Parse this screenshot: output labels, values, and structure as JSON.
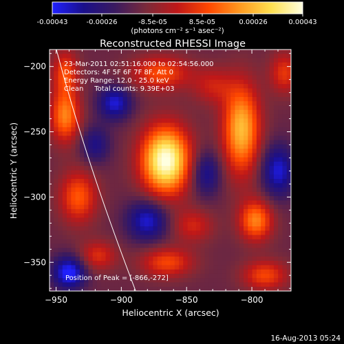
{
  "chart_data": {
    "type": "heatmap",
    "title": "Reconstructed RHESSI Image",
    "xlabel": "Heliocentric X (arcsec)",
    "ylabel": "Heliocentric Y (arcsec)",
    "xlim": [
      -955,
      -770
    ],
    "ylim": [
      -372,
      -187
    ],
    "x_ticks": [
      -950,
      -900,
      -850,
      -800
    ],
    "y_ticks": [
      -200,
      -250,
      -300,
      -350
    ],
    "colorbar": {
      "ticks": [
        "-0.00043",
        "-0.00026",
        "-8.5e-05",
        "8.5e-05",
        "0.00026",
        "0.00043"
      ],
      "tick_values": [
        -0.00043,
        -0.00026,
        -8.5e-05,
        8.5e-05,
        0.00026,
        0.00043
      ],
      "range": [
        -0.00043,
        0.00043
      ],
      "unit": "(photons cm⁻² s⁻¹ asec⁻²)",
      "colors": [
        "#2020ff",
        "#1a0f8a",
        "#3a1a60",
        "#7a2a3a",
        "#c01818",
        "#ff4800",
        "#ff9a20",
        "#ffe050",
        "#ffffe0"
      ]
    },
    "annotations": [
      "23-Mar-2011 02:51:16.000 to 02:54:56.000",
      "Detectors: 4F 5F 6F 7F 8F, Att 0",
      "Energy Range: 12.0 - 25.0 keV",
      "Clean     Total counts: 9.39E+03"
    ],
    "peak_label": "Position of Peak = [-866,-272]",
    "peak": [
      -866,
      -272
    ],
    "sources": [
      {
        "x": -866,
        "y": -272,
        "amp": 1.0,
        "sx": 13,
        "sy": 18
      },
      {
        "x": -808,
        "y": -248,
        "amp": 0.7,
        "sx": 10,
        "sy": 24
      },
      {
        "x": -943,
        "y": -238,
        "amp": 0.55,
        "sx": 8,
        "sy": 14
      },
      {
        "x": -797,
        "y": -318,
        "amp": 0.55,
        "sx": 9,
        "sy": 11
      },
      {
        "x": -933,
        "y": -300,
        "amp": 0.45,
        "sx": 10,
        "sy": 14
      },
      {
        "x": -943,
        "y": -205,
        "amp": 0.4,
        "sx": 7,
        "sy": 12
      },
      {
        "x": -870,
        "y": -205,
        "amp": 0.42,
        "sx": 16,
        "sy": 9
      },
      {
        "x": -865,
        "y": -350,
        "amp": 0.4,
        "sx": 14,
        "sy": 8
      },
      {
        "x": -790,
        "y": -360,
        "amp": 0.4,
        "sx": 12,
        "sy": 8
      },
      {
        "x": -845,
        "y": -322,
        "amp": 0.28,
        "sx": 11,
        "sy": 9
      },
      {
        "x": -918,
        "y": -345,
        "amp": 0.32,
        "sx": 10,
        "sy": 8
      },
      {
        "x": -830,
        "y": -215,
        "amp": 0.25,
        "sx": 11,
        "sy": 10
      },
      {
        "x": -775,
        "y": -205,
        "amp": 0.35,
        "sx": 8,
        "sy": 11
      },
      {
        "x": -905,
        "y": -228,
        "amp": -0.45,
        "sx": 9,
        "sy": 9
      },
      {
        "x": -880,
        "y": -318,
        "amp": -0.45,
        "sx": 11,
        "sy": 11
      },
      {
        "x": -940,
        "y": -358,
        "amp": -0.55,
        "sx": 9,
        "sy": 9
      },
      {
        "x": -780,
        "y": -280,
        "amp": -0.45,
        "sx": 9,
        "sy": 14
      },
      {
        "x": -835,
        "y": -282,
        "amp": -0.35,
        "sx": 8,
        "sy": 12
      },
      {
        "x": -920,
        "y": -260,
        "amp": -0.3,
        "sx": 8,
        "sy": 10
      }
    ],
    "limb_curve": [
      [
        -950,
        -186
      ],
      [
        -930,
        -262
      ],
      [
        -905,
        -330
      ],
      [
        -889,
        -372
      ]
    ]
  },
  "footer": {
    "date": "16-Aug-2013 05:24"
  }
}
